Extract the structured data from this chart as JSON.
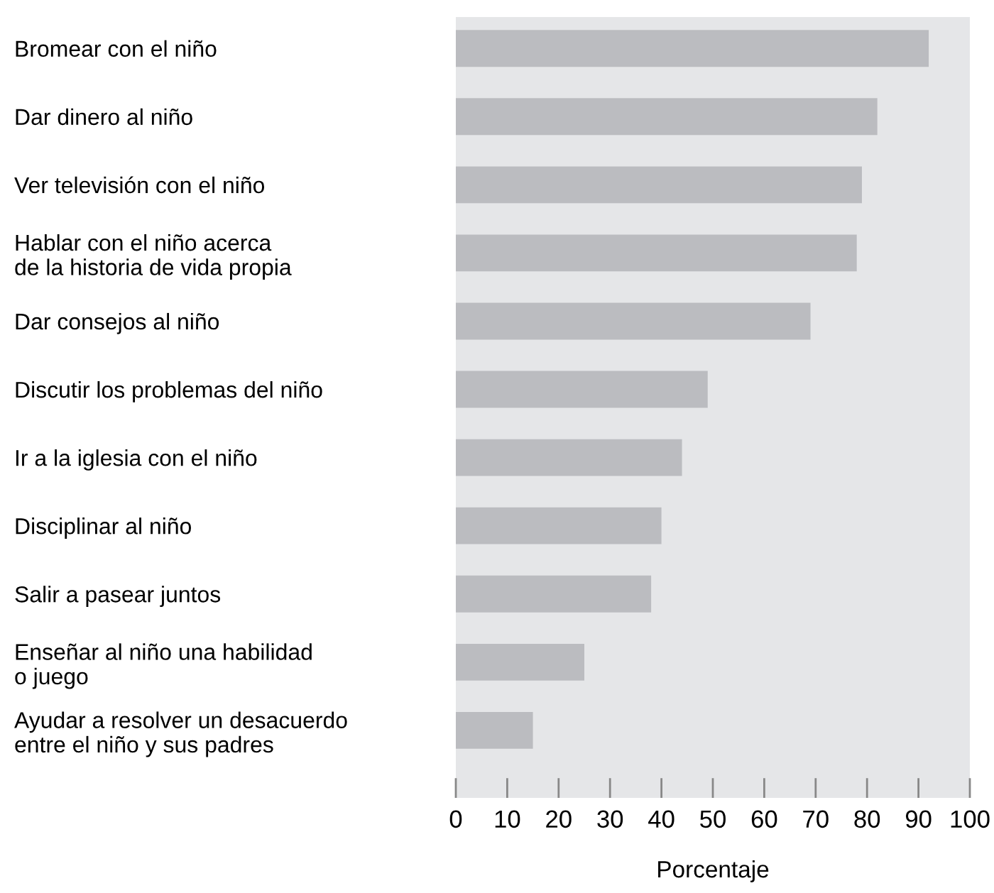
{
  "chart_data": {
    "type": "bar",
    "orientation": "horizontal",
    "xlabel": "Porcentaje",
    "categories": [
      "Bromear con el niño",
      "Dar dinero al niño",
      "Ver televisión con el niño",
      "Hablar con el niño acerca\nde la historia de vida propia",
      "Dar consejos al niño",
      "Discutir los problemas del niño",
      "Ir a la iglesia con el niño",
      "Disciplinar al niño",
      "Salir a pasear juntos",
      "Enseñar al niño una habilidad\no juego",
      "Ayudar a resolver un desacuerdo\nentre el niño y sus padres"
    ],
    "values": [
      92,
      82,
      79,
      78,
      69,
      49,
      44,
      40,
      38,
      25,
      15
    ],
    "color": "#bbbcc0",
    "xlim": [
      0,
      100
    ],
    "xticks": [
      0,
      10,
      20,
      30,
      40,
      50,
      60,
      70,
      80,
      90,
      100
    ],
    "grid": false
  }
}
